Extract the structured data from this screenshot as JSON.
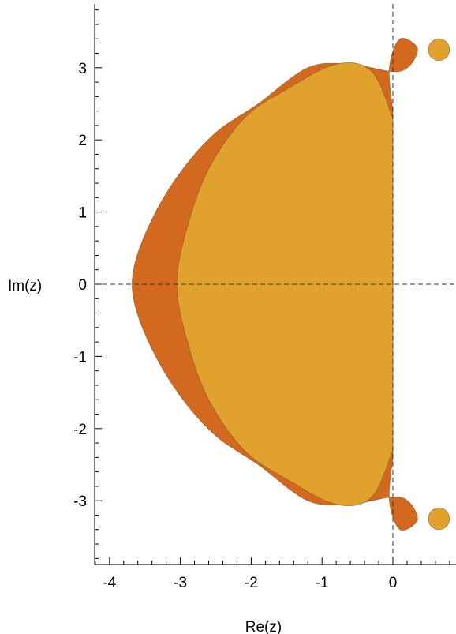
{
  "chart_data": {
    "type": "area",
    "title": "",
    "xlabel": "Re(z)",
    "ylabel": "Im(z)",
    "xlim": [
      -4.2,
      0.9
    ],
    "ylim": [
      -3.9,
      3.9
    ],
    "xticks": [
      -4,
      -3,
      -2,
      -1,
      0
    ],
    "yticks": [
      3,
      2,
      1,
      0,
      -1,
      -2,
      -3
    ],
    "grid": false,
    "colors": {
      "outer_region": "#d2691e",
      "inner_region": "#e0a12d",
      "outline": "#7a4a20",
      "axes": "#000000",
      "reference_lines": "#333333"
    },
    "series": [
      {
        "region": "outer",
        "boundary": [
          [
            0.0,
            2.4
          ],
          [
            -0.05,
            3.0
          ],
          [
            0.1,
            3.4
          ],
          [
            0.35,
            3.25
          ],
          [
            0.1,
            2.95
          ],
          [
            -0.6,
            3.05
          ],
          [
            -1.2,
            3.0
          ],
          [
            -1.9,
            2.5
          ],
          [
            -2.5,
            2.1
          ],
          [
            -3.0,
            1.55
          ],
          [
            -3.4,
            0.9
          ],
          [
            -3.65,
            0.25
          ],
          [
            -3.65,
            -0.25
          ],
          [
            -3.4,
            -0.9
          ],
          [
            -3.0,
            -1.55
          ],
          [
            -2.5,
            -2.1
          ],
          [
            -1.9,
            -2.5
          ],
          [
            -1.2,
            -3.0
          ],
          [
            -0.6,
            -3.05
          ],
          [
            0.1,
            -2.95
          ],
          [
            0.35,
            -3.25
          ],
          [
            0.1,
            -3.4
          ],
          [
            -0.05,
            -3.0
          ],
          [
            0.0,
            -2.4
          ]
        ]
      },
      {
        "region": "inner",
        "boundary": [
          [
            0.0,
            2.3
          ],
          [
            -0.3,
            2.95
          ],
          [
            -0.8,
            3.05
          ],
          [
            -1.5,
            2.7
          ],
          [
            -2.1,
            2.3
          ],
          [
            -2.6,
            1.6
          ],
          [
            -2.9,
            0.8
          ],
          [
            -3.05,
            0.0
          ],
          [
            -2.9,
            -0.8
          ],
          [
            -2.6,
            -1.6
          ],
          [
            -2.1,
            -2.3
          ],
          [
            -1.5,
            -2.7
          ],
          [
            -0.8,
            -3.05
          ],
          [
            -0.3,
            -2.95
          ],
          [
            0.0,
            -2.3
          ]
        ]
      },
      {
        "region": "island-upper",
        "center": [
          0.65,
          3.25
        ],
        "radius": 0.15
      },
      {
        "region": "island-lower",
        "center": [
          0.65,
          -3.25
        ],
        "radius": 0.15
      }
    ]
  }
}
